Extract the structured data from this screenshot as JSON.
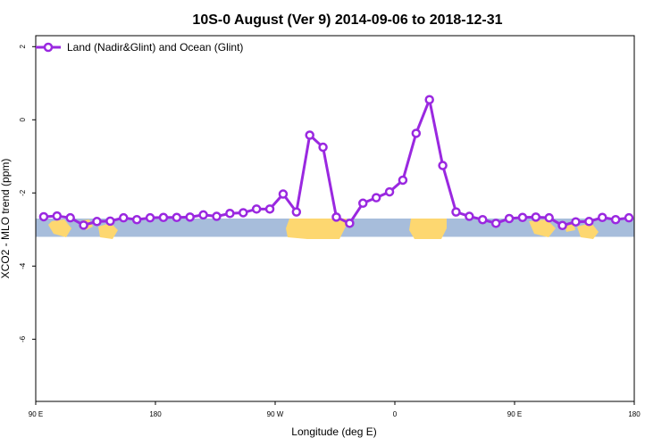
{
  "chart_data": {
    "type": "line",
    "title": "10S-0 August (Ver 9)   2014-09-06 to 2018-12-31",
    "xlabel": "Longitude (deg E)",
    "ylabel": "XCO2 - MLO trend (ppm)",
    "x_ticks": [
      {
        "value": 90,
        "label": "90 E"
      },
      {
        "value": 180,
        "label": "180"
      },
      {
        "value": 270,
        "label": "90 W"
      },
      {
        "value": 360,
        "label": "0"
      },
      {
        "value": 450,
        "label": "90 E"
      },
      {
        "value": 540,
        "label": "180"
      }
    ],
    "y_ticks": [
      2,
      0,
      -2,
      -4,
      -6
    ],
    "xlim": [
      90,
      540
    ],
    "ylim": [
      -7.7,
      2.3
    ],
    "grid": false,
    "legend": {
      "placement": "top-left"
    },
    "colors": {
      "series": "#9a28e0",
      "ocean": "#a7bddb",
      "land": "#fdd770"
    },
    "map_band": {
      "y_top": -2.7,
      "y_bottom": -3.2
    },
    "series": [
      {
        "name": "Land (Nadir&Glint) and Ocean (Glint)",
        "x": [
          96,
          106,
          116,
          126,
          136,
          146,
          156,
          166,
          176,
          186,
          196,
          206,
          216,
          226,
          236,
          246,
          256,
          266,
          276,
          286,
          296,
          306,
          316,
          326,
          336,
          346,
          356,
          366,
          376,
          386,
          396,
          406,
          416,
          426,
          436,
          446,
          456,
          466,
          476,
          486,
          496,
          506,
          516,
          526,
          536
        ],
        "y": [
          -2.65,
          -2.63,
          -2.68,
          -2.88,
          -2.78,
          -2.77,
          -2.68,
          -2.73,
          -2.68,
          -2.67,
          -2.67,
          -2.66,
          -2.6,
          -2.64,
          -2.56,
          -2.54,
          -2.44,
          -2.44,
          -2.03,
          -2.52,
          -0.42,
          -0.75,
          -2.66,
          -2.83,
          -2.28,
          -2.13,
          -1.97,
          -1.65,
          -0.37,
          0.55,
          -1.25,
          -2.52,
          -2.64,
          -2.73,
          -2.83,
          -2.7,
          -2.67,
          -2.66,
          -2.68,
          -2.89,
          -2.79,
          -2.78,
          -2.67,
          -2.73,
          -2.68
        ]
      }
    ]
  }
}
